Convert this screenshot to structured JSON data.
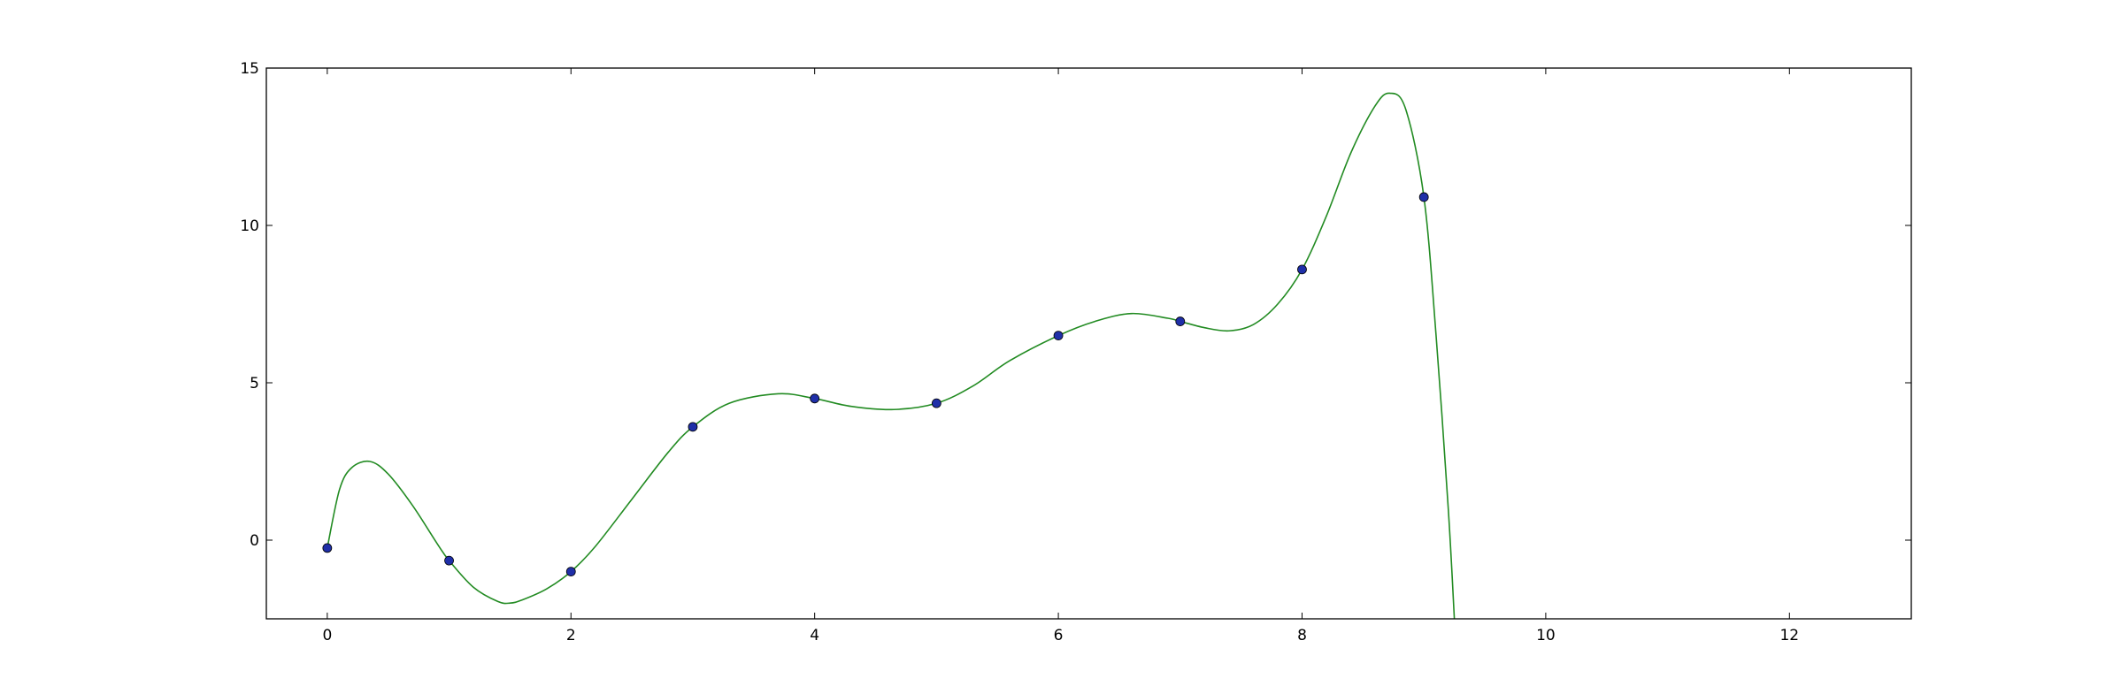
{
  "chart_data": {
    "type": "line",
    "title": "",
    "xlabel": "",
    "ylabel": "",
    "xlim": [
      -0.5,
      13
    ],
    "ylim": [
      -2.5,
      15
    ],
    "grid": false,
    "x_ticks": [
      0,
      2,
      4,
      6,
      8,
      10,
      12
    ],
    "y_ticks": [
      0,
      5,
      10,
      15
    ],
    "series": [
      {
        "kind": "scatter",
        "marker": "circle",
        "color": "#1f2fa8",
        "x": [
          0,
          1,
          2,
          3,
          4,
          5,
          6,
          7,
          8,
          9
        ],
        "y": [
          -0.25,
          -0.65,
          -1.0,
          3.6,
          4.5,
          4.35,
          6.5,
          6.95,
          8.6,
          10.9
        ]
      },
      {
        "kind": "line",
        "color": "#228b22",
        "x": [
          0,
          0.1,
          0.2,
          0.35,
          0.5,
          0.7,
          0.9,
          1.0,
          1.2,
          1.4,
          1.5,
          1.6,
          1.8,
          2.0,
          2.2,
          2.5,
          2.8,
          3.0,
          3.3,
          3.7,
          4.0,
          4.3,
          4.65,
          5.0,
          5.3,
          5.6,
          6.0,
          6.3,
          6.6,
          6.9,
          7.0,
          7.2,
          7.4,
          7.6,
          7.8,
          8.0,
          8.2,
          8.4,
          8.6,
          8.72,
          8.85,
          9.0,
          9.1,
          9.2,
          9.25
        ],
        "y": [
          -0.25,
          1.6,
          2.3,
          2.5,
          2.1,
          1.1,
          -0.1,
          -0.65,
          -1.5,
          -1.95,
          -2.0,
          -1.9,
          -1.55,
          -1.0,
          -0.2,
          1.3,
          2.8,
          3.6,
          4.35,
          4.65,
          4.5,
          4.25,
          4.15,
          4.35,
          4.9,
          5.7,
          6.5,
          6.95,
          7.2,
          7.05,
          6.95,
          6.75,
          6.65,
          6.85,
          7.5,
          8.6,
          10.3,
          12.3,
          13.8,
          14.2,
          13.7,
          10.9,
          6.5,
          1.0,
          -2.5
        ]
      }
    ]
  }
}
